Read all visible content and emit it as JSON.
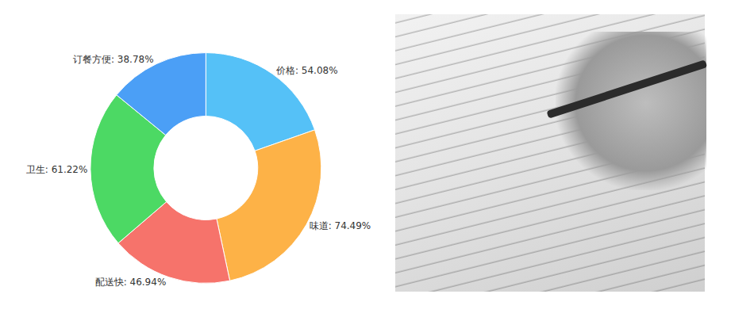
{
  "chart_data": {
    "type": "pie",
    "categories": [
      "价格",
      "味道",
      "配送快",
      "卫生",
      "订餐方便"
    ],
    "values": [
      54.08,
      74.49,
      46.94,
      61.22,
      38.78
    ],
    "value_labels": [
      "价格: 54.08%",
      "味道: 74.49%",
      "配送快: 46.94%",
      "卫生: 61.22%",
      "订餐方便: 38.78%"
    ],
    "colors": [
      "#55c1f7",
      "#fdb247",
      "#f6736b",
      "#4cd964",
      "#4b9ff6"
    ],
    "data_labels": true
  }
}
